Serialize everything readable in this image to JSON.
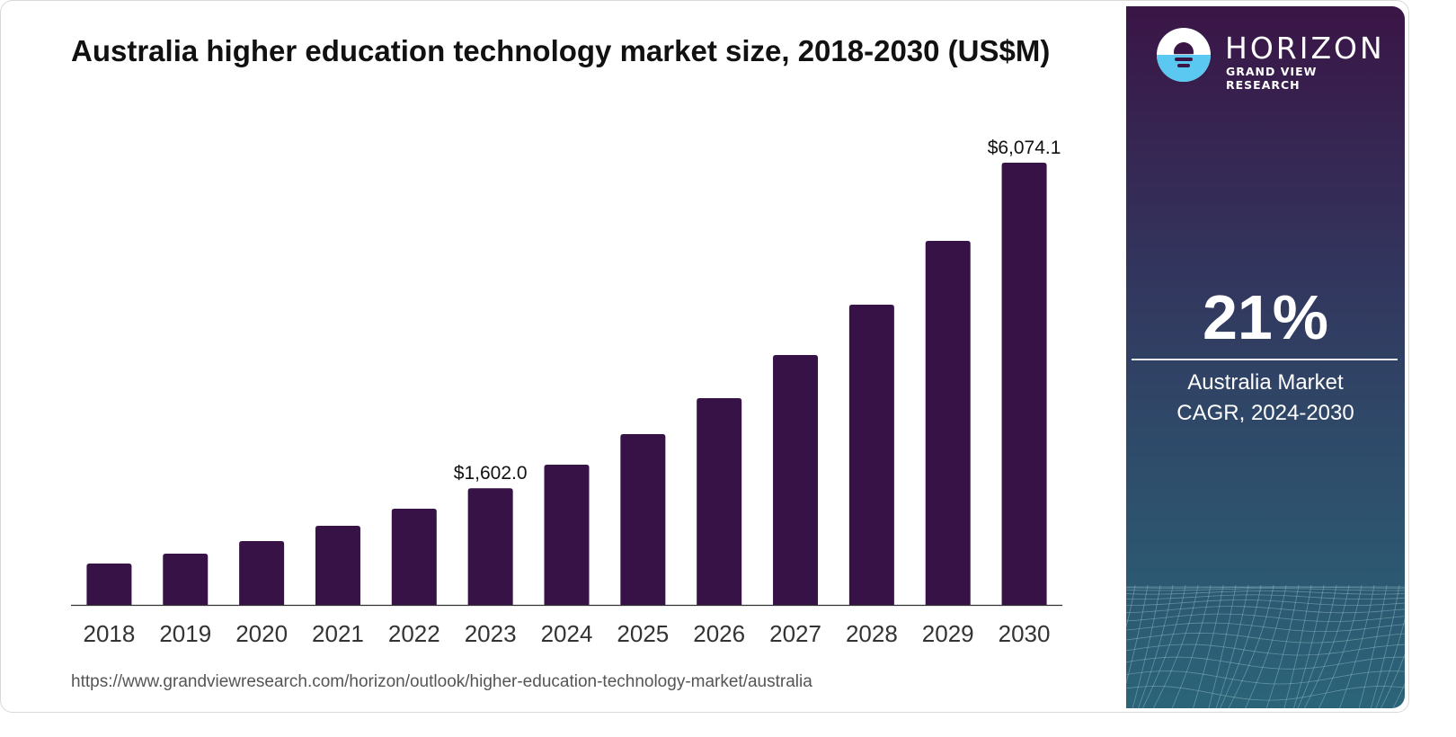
{
  "chart_data": {
    "type": "bar",
    "title": "Australia higher education technology market size, 2018-2030 (US$M)",
    "xlabel": "",
    "ylabel": "",
    "categories": [
      "2018",
      "2019",
      "2020",
      "2021",
      "2022",
      "2023",
      "2024",
      "2025",
      "2026",
      "2027",
      "2028",
      "2029",
      "2030"
    ],
    "values": [
      568,
      704,
      877,
      1086,
      1321,
      1602.0,
      1926,
      2346,
      2840,
      3432,
      4124,
      5000,
      6074.1
    ],
    "data_labels": [
      {
        "category": "2023",
        "text": "$1,602.0"
      },
      {
        "category": "2030",
        "text": "$6,074.1"
      }
    ],
    "ylim": [
      0,
      6074.1
    ],
    "grid": false,
    "legend": "none",
    "bar_color": "#371246"
  },
  "source_url": "https://www.grandviewresearch.com/horizon/outlook/higher-education-technology-market/australia",
  "sidebar": {
    "brand": "HORIZON",
    "brand_sub": "GRAND VIEW RESEARCH",
    "cagr_value": "21%",
    "cagr_label_line1": "Australia Market",
    "cagr_label_line2": "CAGR, 2024-2030"
  }
}
